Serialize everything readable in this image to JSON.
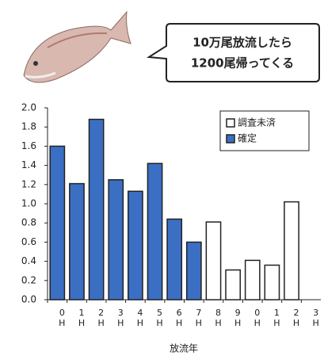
{
  "bubble": {
    "lines": [
      "10万尾放流したら",
      "1200尾帰ってくる"
    ]
  },
  "chart_data": {
    "type": "bar",
    "xlabel": "放流年",
    "categories": [
      "0H",
      "1H",
      "2H",
      "3H",
      "4H",
      "5H",
      "6H",
      "7H",
      "8H",
      "9H",
      "0H",
      "1H",
      "2H",
      "3H"
    ],
    "series": [
      {
        "name": "調査未済",
        "color": "#ffffff",
        "values": [
          null,
          null,
          null,
          null,
          null,
          null,
          null,
          null,
          0.81,
          0.31,
          0.41,
          0.36,
          1.02,
          null
        ]
      },
      {
        "name": "確定",
        "color": "#3a6fc4",
        "values": [
          1.6,
          1.21,
          1.88,
          1.25,
          1.13,
          1.42,
          0.84,
          0.6,
          null,
          null,
          null,
          null,
          null,
          null
        ]
      }
    ],
    "ylim": [
      0,
      2
    ],
    "yticks": [
      {
        "value": 0,
        "label": "0.0"
      },
      0.2,
      0.4,
      0.6,
      0.8,
      {
        "value": 1,
        "label": "1.0"
      },
      1.2,
      1.4,
      1.6,
      1.8,
      {
        "value": 2,
        "label": "2.0"
      }
    ]
  }
}
